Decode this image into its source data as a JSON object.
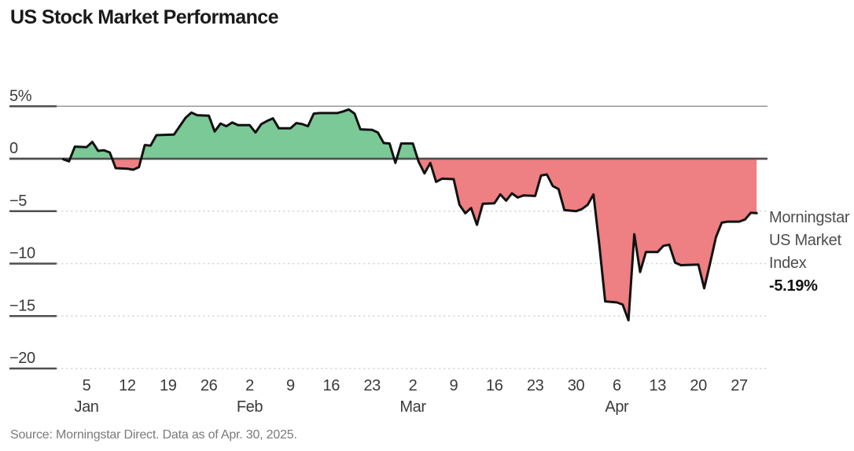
{
  "title": "US Stock Market Performance",
  "source": "Source: Morningstar Direct. Data as of Apr. 30, 2025.",
  "annotation": {
    "lines": [
      "Morningstar",
      "US Market",
      "Index"
    ],
    "value": "-5.19%"
  },
  "colors": {
    "positive_fill": "#7bc996",
    "negative_fill": "#ee7f82",
    "line": "#111111",
    "zero_line": "#4f4f4f",
    "top_gridline": "#989898",
    "dashed_gridline": "#d8d8d8",
    "tick_segment": "#4f4f4f",
    "label_text": "#3a3a3a"
  },
  "chart_data": {
    "type": "area",
    "title": "US Stock Market Performance",
    "series_name": "Morningstar US Market Index",
    "unit": "%",
    "final_value_pct": -5.19,
    "ylim": [
      -20,
      5
    ],
    "grid": "horizontal, dashed below zero, solid at 5%, dark zero baseline",
    "legend_position": "right-annotation",
    "y_ticks": [
      {
        "value": 5,
        "label": "5%"
      },
      {
        "value": 0,
        "label": "0"
      },
      {
        "value": -5,
        "label": "−5"
      },
      {
        "value": -10,
        "label": "−10"
      },
      {
        "value": -15,
        "label": "−15"
      },
      {
        "value": -20,
        "label": "−20"
      }
    ],
    "x_ticks": [
      {
        "doy": 5,
        "label": "5"
      },
      {
        "doy": 12,
        "label": "12"
      },
      {
        "doy": 19,
        "label": "19"
      },
      {
        "doy": 26,
        "label": "26"
      },
      {
        "doy": 33,
        "label": "2"
      },
      {
        "doy": 40,
        "label": "9"
      },
      {
        "doy": 47,
        "label": "16"
      },
      {
        "doy": 54,
        "label": "23"
      },
      {
        "doy": 61,
        "label": "2"
      },
      {
        "doy": 68,
        "label": "9"
      },
      {
        "doy": 75,
        "label": "16"
      },
      {
        "doy": 82,
        "label": "23"
      },
      {
        "doy": 89,
        "label": "30"
      },
      {
        "doy": 96,
        "label": "6"
      },
      {
        "doy": 103,
        "label": "13"
      },
      {
        "doy": 110,
        "label": "20"
      },
      {
        "doy": 117,
        "label": "27"
      }
    ],
    "month_labels": [
      {
        "doy": 5,
        "label": "Jan"
      },
      {
        "doy": 33,
        "label": "Feb"
      },
      {
        "doy": 61,
        "label": "Mar"
      },
      {
        "doy": 96,
        "label": "Apr"
      }
    ],
    "points": [
      [
        1,
        "Jan 1",
        -0.05
      ],
      [
        2,
        "Jan 2",
        -0.25
      ],
      [
        3,
        "Jan 3",
        1.15
      ],
      [
        5,
        "Jan 5",
        1.1
      ],
      [
        6,
        "Jan 6",
        1.6
      ],
      [
        7,
        "Jan 7",
        0.75
      ],
      [
        8,
        "Jan 8",
        0.8
      ],
      [
        9,
        "Jan 9",
        0.6
      ],
      [
        10,
        "Jan 10",
        -0.9
      ],
      [
        12,
        "Jan 12",
        -0.95
      ],
      [
        13,
        "Jan 13",
        -1.05
      ],
      [
        14,
        "Jan 14",
        -0.8
      ],
      [
        15,
        "Jan 15",
        1.3
      ],
      [
        16,
        "Jan 16",
        1.25
      ],
      [
        17,
        "Jan 17",
        2.25
      ],
      [
        20,
        "Jan 20",
        2.3
      ],
      [
        21,
        "Jan 21",
        3.1
      ],
      [
        22,
        "Jan 22",
        3.9
      ],
      [
        23,
        "Jan 23",
        4.4
      ],
      [
        24,
        "Jan 24",
        4.15
      ],
      [
        26,
        "Jan 26",
        4.1
      ],
      [
        27,
        "Jan 27",
        2.6
      ],
      [
        28,
        "Jan 28",
        3.35
      ],
      [
        29,
        "Jan 29",
        3.1
      ],
      [
        30,
        "Jan 30",
        3.45
      ],
      [
        31,
        "Jan 31",
        3.2
      ],
      [
        33,
        "Feb 2",
        3.2
      ],
      [
        34,
        "Feb 3",
        2.5
      ],
      [
        35,
        "Feb 4",
        3.3
      ],
      [
        36,
        "Feb 5",
        3.6
      ],
      [
        37,
        "Feb 6",
        3.85
      ],
      [
        38,
        "Feb 7",
        2.9
      ],
      [
        40,
        "Feb 9",
        2.9
      ],
      [
        41,
        "Feb 10",
        3.4
      ],
      [
        42,
        "Feb 11",
        3.3
      ],
      [
        43,
        "Feb 12",
        3.1
      ],
      [
        44,
        "Feb 13",
        4.3
      ],
      [
        45,
        "Feb 14",
        4.35
      ],
      [
        48,
        "Feb 17",
        4.35
      ],
      [
        49,
        "Feb 18",
        4.5
      ],
      [
        50,
        "Feb 19",
        4.7
      ],
      [
        51,
        "Feb 20",
        4.3
      ],
      [
        52,
        "Feb 21",
        2.8
      ],
      [
        54,
        "Feb 23",
        2.75
      ],
      [
        55,
        "Feb 24",
        2.5
      ],
      [
        56,
        "Feb 25",
        1.5
      ],
      [
        57,
        "Feb 26",
        1.45
      ],
      [
        58,
        "Feb 27",
        -0.4
      ],
      [
        59,
        "Feb 28",
        1.45
      ],
      [
        61,
        "Mar 2",
        1.45
      ],
      [
        62,
        "Mar 3",
        -0.3
      ],
      [
        63,
        "Mar 4",
        -1.4
      ],
      [
        64,
        "Mar 5",
        -0.4
      ],
      [
        65,
        "Mar 6",
        -2.2
      ],
      [
        66,
        "Mar 7",
        -1.9
      ],
      [
        68,
        "Mar 9",
        -1.95
      ],
      [
        69,
        "Mar 10",
        -4.4
      ],
      [
        70,
        "Mar 11",
        -5.2
      ],
      [
        71,
        "Mar 12",
        -4.7
      ],
      [
        72,
        "Mar 13",
        -6.3
      ],
      [
        73,
        "Mar 14",
        -4.3
      ],
      [
        75,
        "Mar 16",
        -4.25
      ],
      [
        76,
        "Mar 17",
        -3.4
      ],
      [
        77,
        "Mar 18",
        -4.0
      ],
      [
        78,
        "Mar 19",
        -3.3
      ],
      [
        79,
        "Mar 20",
        -3.7
      ],
      [
        80,
        "Mar 21",
        -3.5
      ],
      [
        82,
        "Mar 23",
        -3.55
      ],
      [
        83,
        "Mar 24",
        -1.6
      ],
      [
        84,
        "Mar 25",
        -1.5
      ],
      [
        85,
        "Mar 26",
        -2.6
      ],
      [
        86,
        "Mar 27",
        -2.9
      ],
      [
        87,
        "Mar 28",
        -4.9
      ],
      [
        89,
        "Mar 30",
        -5.0
      ],
      [
        90,
        "Mar 31",
        -4.8
      ],
      [
        91,
        "Apr 1",
        -4.4
      ],
      [
        92,
        "Apr 2",
        -3.4
      ],
      [
        93,
        "Apr 3",
        -8.2
      ],
      [
        94,
        "Apr 4",
        -13.6
      ],
      [
        96,
        "Apr 6",
        -13.7
      ],
      [
        97,
        "Apr 7",
        -13.9
      ],
      [
        98,
        "Apr 8",
        -15.4
      ],
      [
        99,
        "Apr 9",
        -7.2
      ],
      [
        100,
        "Apr 10",
        -10.8
      ],
      [
        101,
        "Apr 11",
        -8.9
      ],
      [
        103,
        "Apr 13",
        -8.9
      ],
      [
        104,
        "Apr 14",
        -8.3
      ],
      [
        105,
        "Apr 15",
        -8.2
      ],
      [
        106,
        "Apr 16",
        -9.9
      ],
      [
        107,
        "Apr 17",
        -10.15
      ],
      [
        110,
        "Apr 20",
        -10.1
      ],
      [
        111,
        "Apr 21",
        -12.35
      ],
      [
        112,
        "Apr 22",
        -10.0
      ],
      [
        113,
        "Apr 23",
        -7.5
      ],
      [
        114,
        "Apr 24",
        -6.1
      ],
      [
        115,
        "Apr 25",
        -6.0
      ],
      [
        117,
        "Apr 27",
        -6.0
      ],
      [
        118,
        "Apr 28",
        -5.8
      ],
      [
        119,
        "Apr 29",
        -5.15
      ],
      [
        120,
        "Apr 30",
        -5.19
      ]
    ]
  }
}
